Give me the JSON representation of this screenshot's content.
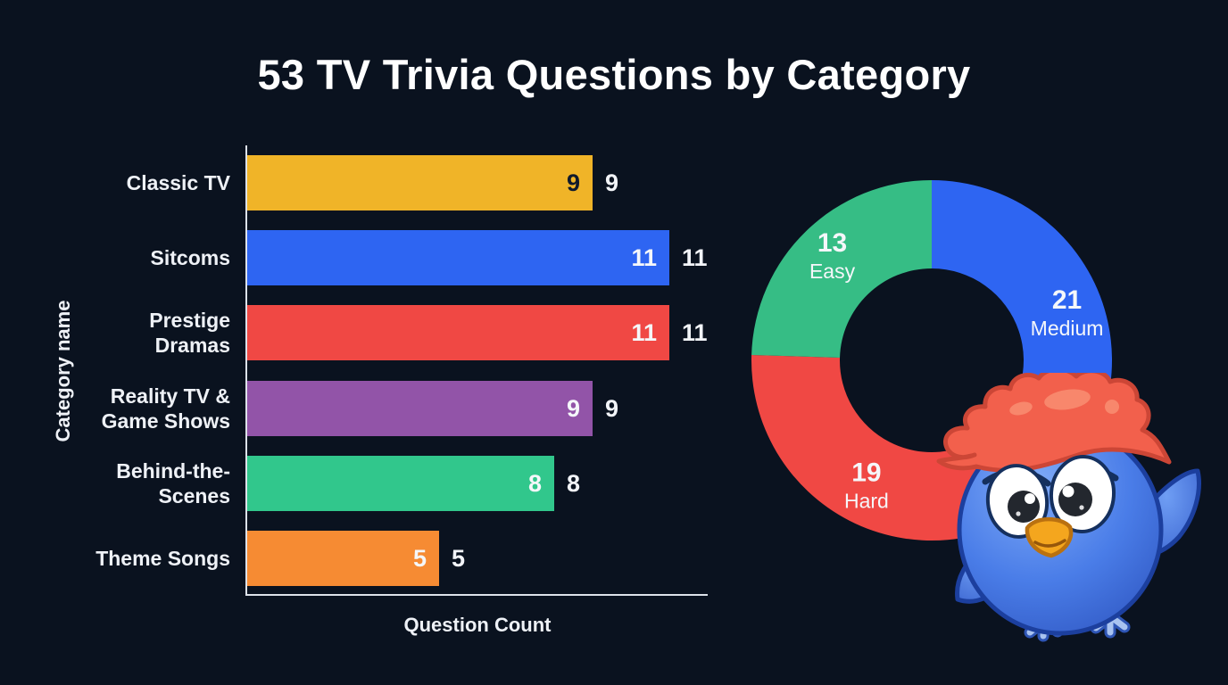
{
  "title": "53 TV Trivia Questions by Category",
  "colors": {
    "background": "#0a121f",
    "axis_line": "#dde2e9",
    "text": "#f2f4f8"
  },
  "chart_data": [
    {
      "type": "bar",
      "orientation": "horizontal",
      "title": "",
      "xlabel": "Question Count",
      "ylabel": "Category name",
      "xlim": [
        0,
        12
      ],
      "grid": false,
      "categories": [
        "Classic TV",
        "Sitcoms",
        "Prestige\nDramas",
        "Reality TV &\nGame Shows",
        "Behind-the-\nScenes",
        "Theme Songs"
      ],
      "values": [
        9,
        11,
        11,
        9,
        8,
        5
      ],
      "bar_colors": [
        "#f0b428",
        "#2e65f2",
        "#f04844",
        "#9254a8",
        "#31c78c",
        "#f68b33"
      ],
      "inside_value_colors": [
        "#101a2c",
        "#f5f7fa",
        "#f5f7fa",
        "#f5f7fa",
        "#f5f7fa",
        "#f5f7fa"
      ],
      "value_labels": "inside and outside bar end"
    },
    {
      "type": "pie",
      "subtype": "donut",
      "labels": [
        "Medium",
        "Hard",
        "Easy"
      ],
      "values": [
        21,
        19,
        13
      ],
      "colors": [
        "#2e65f2",
        "#f04844",
        "#36bd85"
      ],
      "start_angle_deg": 0,
      "direction": "clockwise",
      "inner_radius_ratio": 0.51,
      "label_placement": "value and name inside slices",
      "legend_position": "none"
    }
  ],
  "mascot": {
    "description": "blue bird mascot with red crest",
    "body_color": "#4a7de8",
    "crest_color": "#f2604c",
    "beak_color": "#f4a61e",
    "foot_color": "#a9c3f0"
  }
}
